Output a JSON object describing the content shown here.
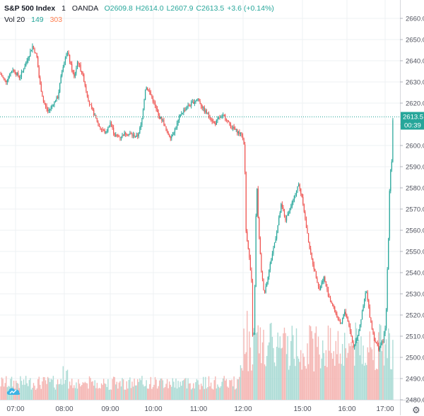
{
  "header": {
    "symbol": "S&P 500 Index",
    "resolution": "1",
    "source": "OANDA",
    "open": "O2609.8",
    "high": "H2614.0",
    "low": "L2607.9",
    "close": "C2613.5",
    "change": "+3.6 (+0.14%)"
  },
  "volume_legend": {
    "label": "Vol 20",
    "value1": "149",
    "value2": "303"
  },
  "price_tag": {
    "price": "2613.5",
    "countdown": "00:39"
  },
  "colors": {
    "up": "#26a69a",
    "down": "#ef5350",
    "vol_up": "#a4d8d2",
    "vol_down": "#f4b0ad",
    "grid": "#eef0f3",
    "axis_text": "#50535e",
    "price_line": "#26a69a"
  },
  "icons": {
    "settings": "gear-icon",
    "logo": "tradingview-cloud-icon"
  },
  "chart_data": {
    "type": "candlestick",
    "y_ticks": [
      2480,
      2490,
      2500,
      2510,
      2520,
      2530,
      2540,
      2550,
      2560,
      2570,
      2580,
      2590,
      2600,
      2610,
      2620,
      2630,
      2640,
      2650,
      2660
    ],
    "ylim": [
      2480,
      2660
    ],
    "x_ticks": [
      "07:00",
      "08:00",
      "09:00",
      "10:00",
      "11:00",
      "12:00",
      "15:00",
      "16:00",
      "17:00"
    ],
    "price_path": [
      {
        "x": 0,
        "y": 2634
      },
      {
        "x": 8,
        "y": 2630
      },
      {
        "x": 18,
        "y": 2636
      },
      {
        "x": 28,
        "y": 2632
      },
      {
        "x": 38,
        "y": 2640
      },
      {
        "x": 46,
        "y": 2647
      },
      {
        "x": 52,
        "y": 2642
      },
      {
        "x": 56,
        "y": 2630
      },
      {
        "x": 62,
        "y": 2620
      },
      {
        "x": 68,
        "y": 2616
      },
      {
        "x": 74,
        "y": 2619
      },
      {
        "x": 82,
        "y": 2623
      },
      {
        "x": 88,
        "y": 2636
      },
      {
        "x": 95,
        "y": 2645
      },
      {
        "x": 100,
        "y": 2638
      },
      {
        "x": 105,
        "y": 2632
      },
      {
        "x": 110,
        "y": 2640
      },
      {
        "x": 118,
        "y": 2632
      },
      {
        "x": 126,
        "y": 2620
      },
      {
        "x": 134,
        "y": 2614
      },
      {
        "x": 142,
        "y": 2608
      },
      {
        "x": 150,
        "y": 2606
      },
      {
        "x": 156,
        "y": 2611
      },
      {
        "x": 162,
        "y": 2605
      },
      {
        "x": 170,
        "y": 2604
      },
      {
        "x": 178,
        "y": 2606
      },
      {
        "x": 186,
        "y": 2605
      },
      {
        "x": 194,
        "y": 2604
      },
      {
        "x": 200,
        "y": 2610
      },
      {
        "x": 206,
        "y": 2628
      },
      {
        "x": 212,
        "y": 2625
      },
      {
        "x": 218,
        "y": 2620
      },
      {
        "x": 224,
        "y": 2614
      },
      {
        "x": 230,
        "y": 2612
      },
      {
        "x": 236,
        "y": 2606
      },
      {
        "x": 242,
        "y": 2604
      },
      {
        "x": 248,
        "y": 2608
      },
      {
        "x": 256,
        "y": 2615
      },
      {
        "x": 264,
        "y": 2618
      },
      {
        "x": 272,
        "y": 2620
      },
      {
        "x": 280,
        "y": 2622
      },
      {
        "x": 288,
        "y": 2617
      },
      {
        "x": 296,
        "y": 2614
      },
      {
        "x": 304,
        "y": 2610
      },
      {
        "x": 310,
        "y": 2613
      },
      {
        "x": 318,
        "y": 2614
      },
      {
        "x": 326,
        "y": 2609
      },
      {
        "x": 334,
        "y": 2607
      },
      {
        "x": 342,
        "y": 2605
      },
      {
        "x": 346,
        "y": 2600
      },
      {
        "x": 348,
        "y": 2560
      },
      {
        "x": 352,
        "y": 2550
      },
      {
        "x": 356,
        "y": 2535
      },
      {
        "x": 358,
        "y": 2502
      },
      {
        "x": 360,
        "y": 2520
      },
      {
        "x": 363,
        "y": 2585
      },
      {
        "x": 366,
        "y": 2560
      },
      {
        "x": 370,
        "y": 2540
      },
      {
        "x": 374,
        "y": 2530
      },
      {
        "x": 380,
        "y": 2540
      },
      {
        "x": 386,
        "y": 2550
      },
      {
        "x": 392,
        "y": 2560
      },
      {
        "x": 398,
        "y": 2572
      },
      {
        "x": 404,
        "y": 2565
      },
      {
        "x": 410,
        "y": 2570
      },
      {
        "x": 416,
        "y": 2575
      },
      {
        "x": 422,
        "y": 2582
      },
      {
        "x": 428,
        "y": 2575
      },
      {
        "x": 434,
        "y": 2560
      },
      {
        "x": 440,
        "y": 2548
      },
      {
        "x": 446,
        "y": 2540
      },
      {
        "x": 452,
        "y": 2532
      },
      {
        "x": 458,
        "y": 2538
      },
      {
        "x": 464,
        "y": 2530
      },
      {
        "x": 470,
        "y": 2525
      },
      {
        "x": 476,
        "y": 2520
      },
      {
        "x": 482,
        "y": 2515
      },
      {
        "x": 488,
        "y": 2522
      },
      {
        "x": 494,
        "y": 2515
      },
      {
        "x": 500,
        "y": 2505
      },
      {
        "x": 506,
        "y": 2510
      },
      {
        "x": 512,
        "y": 2520
      },
      {
        "x": 518,
        "y": 2532
      },
      {
        "x": 524,
        "y": 2518
      },
      {
        "x": 530,
        "y": 2508
      },
      {
        "x": 536,
        "y": 2504
      },
      {
        "x": 542,
        "y": 2508
      },
      {
        "x": 546,
        "y": 2515
      },
      {
        "x": 548,
        "y": 2540
      },
      {
        "x": 550,
        "y": 2560
      },
      {
        "x": 552,
        "y": 2590
      },
      {
        "x": 554,
        "y": 2588
      },
      {
        "x": 556,
        "y": 2613.5
      }
    ]
  }
}
